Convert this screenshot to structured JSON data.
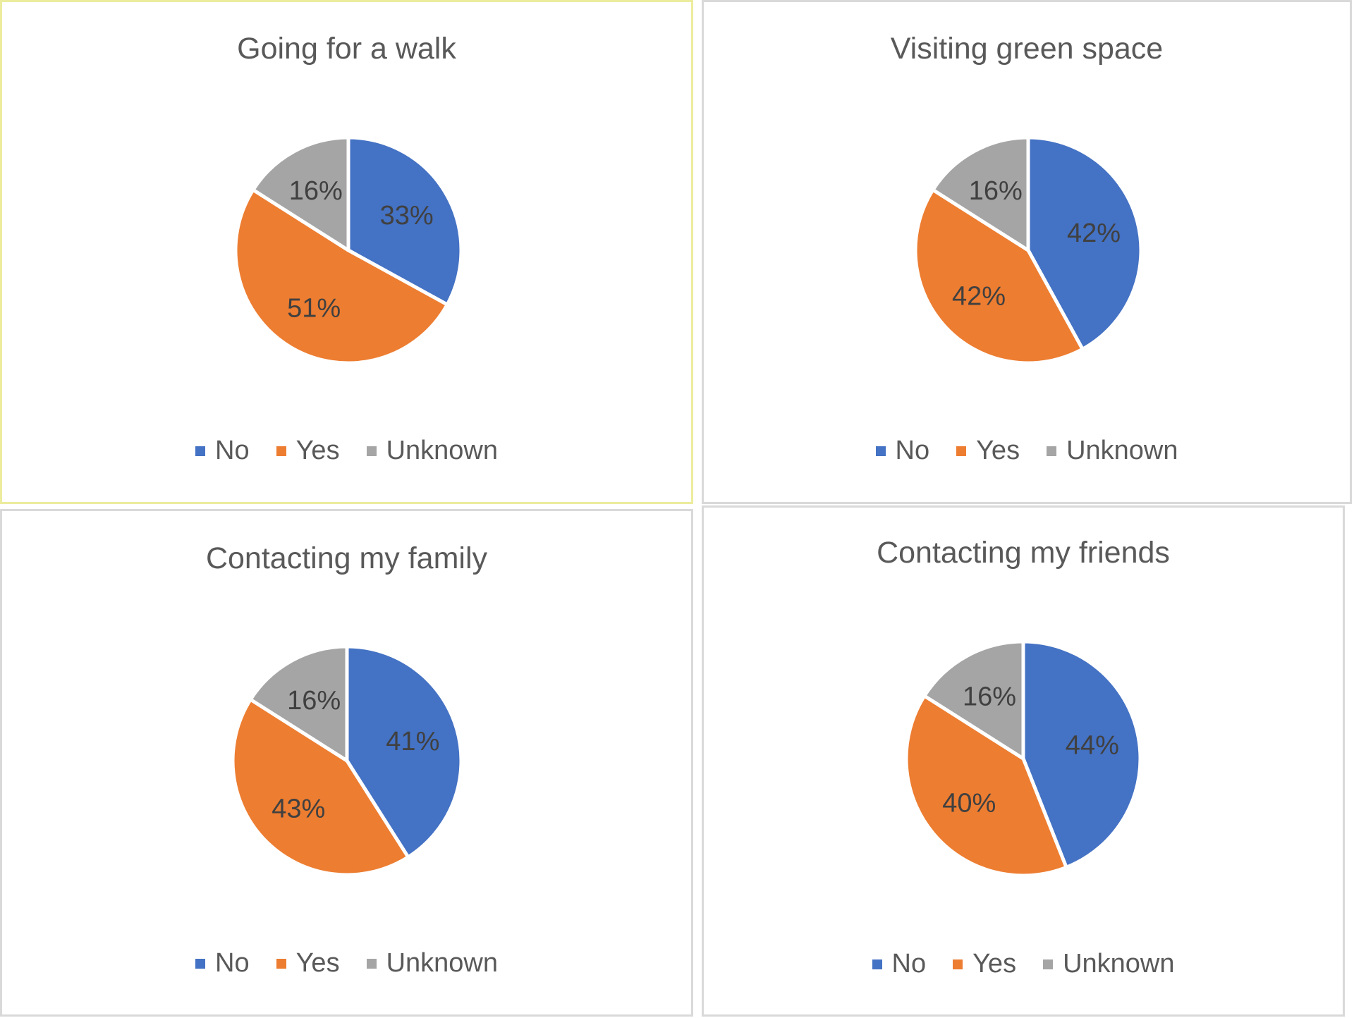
{
  "chart_data": [
    {
      "type": "pie",
      "title": "Going for a walk",
      "categories": [
        "No",
        "Yes",
        "Unknown"
      ],
      "values": [
        33,
        51,
        16
      ],
      "labels": [
        "33%",
        "51%",
        "16%"
      ],
      "colors": [
        "#4472C4",
        "#ED7D31",
        "#A5A5A5"
      ],
      "legend": {
        "position": "bottom",
        "entries": [
          "No",
          "Yes",
          "Unknown"
        ]
      }
    },
    {
      "type": "pie",
      "title": "Visiting green space",
      "categories": [
        "No",
        "Yes",
        "Unknown"
      ],
      "values": [
        42,
        42,
        16
      ],
      "labels": [
        "42%",
        "42%",
        "16%"
      ],
      "colors": [
        "#4472C4",
        "#ED7D31",
        "#A5A5A5"
      ],
      "legend": {
        "position": "bottom",
        "entries": [
          "No",
          "Yes",
          "Unknown"
        ]
      }
    },
    {
      "type": "pie",
      "title": "Contacting my family",
      "categories": [
        "No",
        "Yes",
        "Unknown"
      ],
      "values": [
        41,
        43,
        16
      ],
      "labels": [
        "41%",
        "43%",
        "16%"
      ],
      "colors": [
        "#4472C4",
        "#ED7D31",
        "#A5A5A5"
      ],
      "legend": {
        "position": "bottom",
        "entries": [
          "No",
          "Yes",
          "Unknown"
        ]
      }
    },
    {
      "type": "pie",
      "title": "Contacting my friends",
      "categories": [
        "No",
        "Yes",
        "Unknown"
      ],
      "values": [
        44,
        40,
        16
      ],
      "labels": [
        "44%",
        "40%",
        "16%"
      ],
      "colors": [
        "#4472C4",
        "#ED7D31",
        "#A5A5A5"
      ],
      "legend": {
        "position": "bottom",
        "entries": [
          "No",
          "Yes",
          "Unknown"
        ]
      }
    }
  ]
}
